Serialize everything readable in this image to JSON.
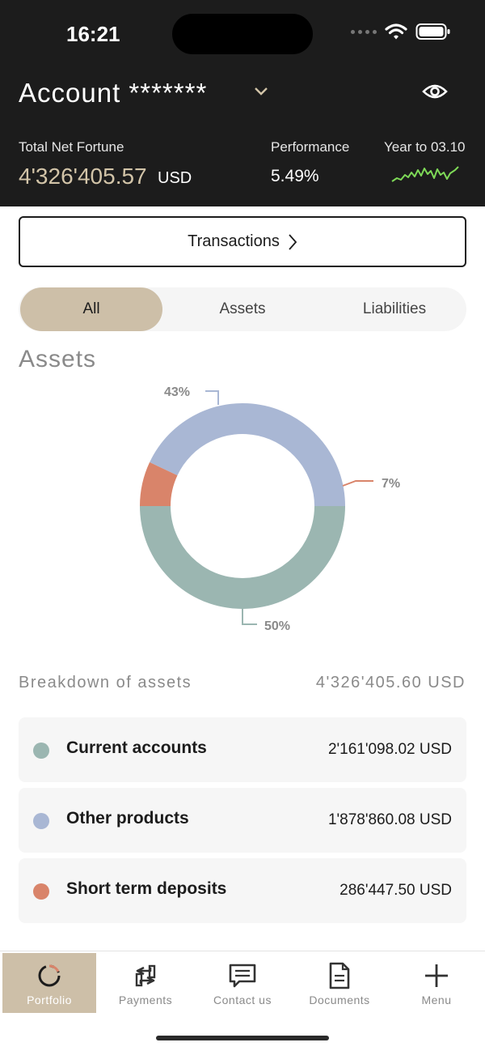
{
  "status_bar": {
    "time": "16:21"
  },
  "header": {
    "account_title": "Account *******",
    "total_net_fortune_label": "Total Net Fortune",
    "total_net_fortune_value": "4'326'405.57",
    "currency": "USD",
    "performance_label": "Performance",
    "performance_value": "5.49%",
    "period_label": "Year to 03.10"
  },
  "transactions_button": {
    "label": "Transactions"
  },
  "segments": {
    "selected": "All",
    "items": [
      "All",
      "Assets",
      "Liabilities"
    ]
  },
  "section_title": "Assets",
  "chart_data": {
    "type": "pie",
    "variant": "donut",
    "title": "",
    "slices": [
      {
        "label": "Current accounts",
        "value": 50,
        "display": "50%",
        "color": "#9bb6b1"
      },
      {
        "label": "Other products",
        "value": 43,
        "display": "43%",
        "color": "#a9b7d4"
      },
      {
        "label": "Short term deposits",
        "value": 7,
        "display": "7%",
        "color": "#d9846a"
      }
    ]
  },
  "breakdown": {
    "label": "Breakdown of assets",
    "total": "4'326'405.60 USD",
    "items": [
      {
        "name": "Current accounts",
        "amount": "2'161'098.02 USD",
        "color": "#9bb6b1"
      },
      {
        "name": "Other products",
        "amount": "1'878'860.08 USD",
        "color": "#a9b7d4"
      },
      {
        "name": "Short term deposits",
        "amount": "286'447.50 USD",
        "color": "#d9846a"
      }
    ]
  },
  "tabbar": {
    "active": "Portfolio",
    "items": [
      {
        "label": "Portfolio",
        "icon": "portfolio-ring-icon"
      },
      {
        "label": "Payments",
        "icon": "payments-arrows-icon"
      },
      {
        "label": "Contact us",
        "icon": "chat-bubble-icon"
      },
      {
        "label": "Documents",
        "icon": "document-icon"
      },
      {
        "label": "Menu",
        "icon": "plus-icon"
      }
    ]
  },
  "colors": {
    "header_bg": "#1c1c1c",
    "accent_gold": "#cdbfa8",
    "sparkline": "#7ed957"
  }
}
